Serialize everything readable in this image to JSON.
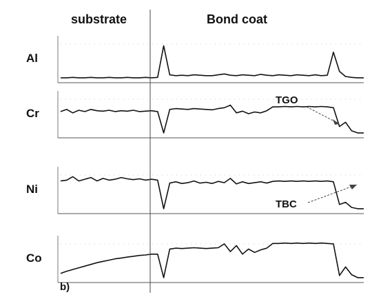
{
  "headers": {
    "substrate": "substrate",
    "bond_coat": "Bond coat"
  },
  "annotations": {
    "tgo": "TGO",
    "tbc": "TBC",
    "panel": "b)"
  },
  "colors": {
    "trace": "#111111",
    "guide": "#444444"
  },
  "chart_data": {
    "type": "line",
    "title": "",
    "xlabel": "",
    "ylabel": "",
    "x": [
      0,
      2,
      4,
      6,
      8,
      10,
      12,
      14,
      16,
      18,
      20,
      22,
      24,
      26,
      28,
      30,
      32,
      34,
      36,
      38,
      40,
      42,
      44,
      46,
      48,
      50,
      52,
      54,
      56,
      58,
      60,
      62,
      64,
      66,
      68,
      70,
      72,
      74,
      76,
      78,
      80,
      82,
      84,
      86,
      88,
      90,
      92,
      94,
      96,
      98,
      100
    ],
    "xlim": [
      0,
      100
    ],
    "ylim": [
      0,
      1
    ],
    "panels": [
      {
        "name": "Al",
        "values": [
          0.05,
          0.05,
          0.06,
          0.05,
          0.05,
          0.06,
          0.05,
          0.05,
          0.06,
          0.05,
          0.05,
          0.06,
          0.05,
          0.05,
          0.06,
          0.05,
          0.06,
          0.8,
          0.12,
          0.1,
          0.11,
          0.1,
          0.12,
          0.11,
          0.1,
          0.1,
          0.12,
          0.14,
          0.11,
          0.1,
          0.12,
          0.11,
          0.1,
          0.13,
          0.11,
          0.1,
          0.12,
          0.11,
          0.1,
          0.12,
          0.11,
          0.1,
          0.12,
          0.1,
          0.11,
          0.65,
          0.2,
          0.08,
          0.06,
          0.05,
          0.05
        ]
      },
      {
        "name": "Cr",
        "values": [
          0.55,
          0.6,
          0.52,
          0.58,
          0.55,
          0.6,
          0.57,
          0.56,
          0.58,
          0.55,
          0.57,
          0.56,
          0.58,
          0.55,
          0.56,
          0.57,
          0.55,
          0.05,
          0.6,
          0.62,
          0.61,
          0.6,
          0.62,
          0.61,
          0.6,
          0.59,
          0.62,
          0.64,
          0.7,
          0.52,
          0.56,
          0.5,
          0.54,
          0.52,
          0.57,
          0.66,
          0.66,
          0.67,
          0.66,
          0.67,
          0.66,
          0.67,
          0.66,
          0.67,
          0.66,
          0.64,
          0.2,
          0.3,
          0.1,
          0.05,
          0.05
        ]
      },
      {
        "name": "Ni",
        "values": [
          0.7,
          0.72,
          0.8,
          0.7,
          0.74,
          0.78,
          0.7,
          0.76,
          0.72,
          0.74,
          0.78,
          0.75,
          0.73,
          0.75,
          0.72,
          0.74,
          0.72,
          0.05,
          0.65,
          0.68,
          0.64,
          0.66,
          0.7,
          0.65,
          0.67,
          0.64,
          0.69,
          0.66,
          0.76,
          0.63,
          0.68,
          0.64,
          0.66,
          0.68,
          0.65,
          0.69,
          0.7,
          0.69,
          0.7,
          0.69,
          0.7,
          0.69,
          0.7,
          0.69,
          0.7,
          0.68,
          0.15,
          0.2,
          0.08,
          0.05,
          0.05
        ]
      },
      {
        "name": "Co",
        "values": [
          0.15,
          0.2,
          0.24,
          0.28,
          0.32,
          0.36,
          0.4,
          0.43,
          0.46,
          0.49,
          0.51,
          0.53,
          0.55,
          0.57,
          0.58,
          0.6,
          0.6,
          0.05,
          0.72,
          0.74,
          0.73,
          0.74,
          0.75,
          0.74,
          0.73,
          0.74,
          0.75,
          0.84,
          0.66,
          0.8,
          0.6,
          0.72,
          0.64,
          0.7,
          0.74,
          0.85,
          0.85,
          0.86,
          0.85,
          0.86,
          0.85,
          0.86,
          0.85,
          0.86,
          0.85,
          0.84,
          0.1,
          0.3,
          0.12,
          0.05,
          0.05
        ]
      }
    ]
  }
}
